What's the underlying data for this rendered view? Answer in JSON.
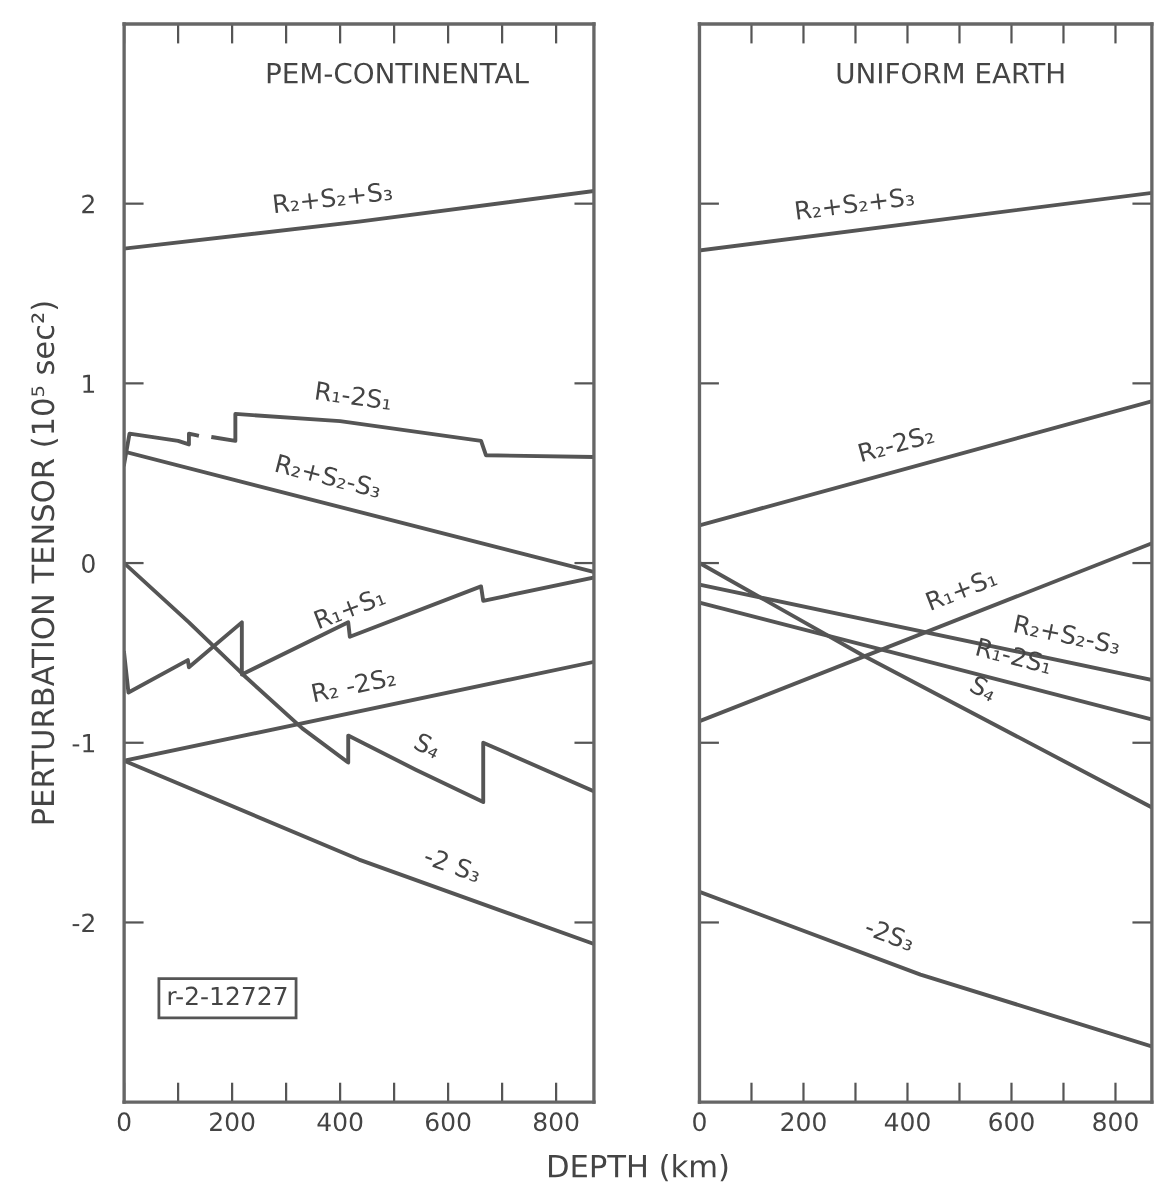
{
  "chart_data": [
    {
      "type": "line",
      "title": "PEM-CONTINENTAL",
      "xlabel": "DEPTH (km)",
      "ylabel": "PERTURBATION TENSOR (10⁵ sec²)",
      "xlim": [
        0,
        870
      ],
      "ylim": [
        -3,
        3
      ],
      "xticks": [
        0,
        {
          "value": 100,
          "label": null
        },
        200,
        {
          "value": 300,
          "label": null
        },
        400,
        {
          "value": 500,
          "label": null
        },
        600,
        {
          "value": 700,
          "label": null
        },
        800
      ],
      "yticks": [
        -2,
        -1,
        0,
        1,
        2
      ],
      "grid": false,
      "legend": false,
      "line_style": "solid",
      "marker": "none",
      "annotations": [
        "r-2-12727"
      ],
      "series": [
        {
          "name": "R₂+S₂+S₃",
          "color": "#555555",
          "x": [
            0,
            435,
            870
          ],
          "values": [
            1.75,
            1.9,
            2.07
          ]
        },
        {
          "name": "R₁-2S₁",
          "color": "#555555",
          "x": [
            0,
            10,
            100,
            120,
            120,
            135,
            140,
            165,
            206,
            206,
            400,
            661,
            670,
            870
          ],
          "values": [
            0.55,
            0.72,
            0.68,
            0.66,
            0.72,
            0.71,
            null,
            0.7,
            0.68,
            0.83,
            0.79,
            0.68,
            0.6,
            0.59
          ]
        },
        {
          "name": "R₂+S₂-S₃",
          "color": "#555555",
          "x": [
            0,
            870
          ],
          "values": [
            0.62,
            -0.05
          ]
        },
        {
          "name": "R₁+S₁",
          "color": "#555555",
          "x": [
            0,
            8,
            118,
            120,
            218,
            218,
            415,
            418,
            661,
            665,
            870
          ],
          "values": [
            -0.5,
            -0.72,
            -0.54,
            -0.58,
            -0.33,
            -0.62,
            -0.33,
            -0.41,
            -0.13,
            -0.21,
            -0.08
          ]
        },
        {
          "name": "R₂ -2S₂",
          "color": "#555555",
          "x": [
            0,
            870
          ],
          "values": [
            -1.1,
            -0.55
          ]
        },
        {
          "name": "S₄",
          "color": "#555555",
          "x": [
            0,
            120,
            220,
            330,
            415,
            415,
            540,
            665,
            665,
            870
          ],
          "values": [
            0,
            -0.33,
            -0.62,
            -0.92,
            -1.11,
            -0.96,
            -1.15,
            -1.33,
            -1.0,
            -1.27
          ]
        },
        {
          "name": "-2 S₃",
          "color": "#555555",
          "x": [
            0,
            435,
            870
          ],
          "values": [
            -1.1,
            -1.65,
            -2.12
          ]
        }
      ]
    },
    {
      "type": "line",
      "title": "UNIFORM EARTH",
      "xlim": [
        0,
        870
      ],
      "ylim": [
        -3,
        3
      ],
      "xticks": [
        0,
        {
          "value": 100,
          "label": null
        },
        200,
        {
          "value": 300,
          "label": null
        },
        400,
        {
          "value": 500,
          "label": null
        },
        600,
        {
          "value": 700,
          "label": null
        },
        800
      ],
      "yticks": [
        {
          "value": -2,
          "label": null
        },
        {
          "value": -1,
          "label": null
        },
        {
          "value": 0,
          "label": null
        },
        {
          "value": 1,
          "label": null
        },
        {
          "value": 2,
          "label": null
        }
      ],
      "tick_labels": "x",
      "grid": false,
      "legend": false,
      "line_style": "solid",
      "marker": "none",
      "series": [
        {
          "name": "R₂+S₂+S₃",
          "color": "#555555",
          "x": [
            0,
            870
          ],
          "values": [
            1.74,
            2.06
          ]
        },
        {
          "name": "R₂-2S₂",
          "color": "#555555",
          "x": [
            0,
            870
          ],
          "values": [
            0.21,
            0.9
          ]
        },
        {
          "name": "R₁+S₁",
          "color": "#555555",
          "x": [
            0,
            870
          ],
          "values": [
            -0.88,
            0.11
          ]
        },
        {
          "name": "R₂+S₂-S₃",
          "color": "#555555",
          "x": [
            0,
            870
          ],
          "values": [
            -0.12,
            -0.65
          ]
        },
        {
          "name": "R₁-2S₁",
          "color": "#555555",
          "x": [
            0,
            870
          ],
          "values": [
            -0.22,
            -0.87
          ]
        },
        {
          "name": "S₄",
          "color": "#555555",
          "x": [
            0,
            312,
            870
          ],
          "values": [
            0,
            -0.51,
            -1.36
          ]
        },
        {
          "name": "-2S₃",
          "color": "#555555",
          "x": [
            0,
            425,
            870
          ],
          "values": [
            -1.83,
            -2.29,
            -2.69
          ]
        }
      ]
    }
  ]
}
